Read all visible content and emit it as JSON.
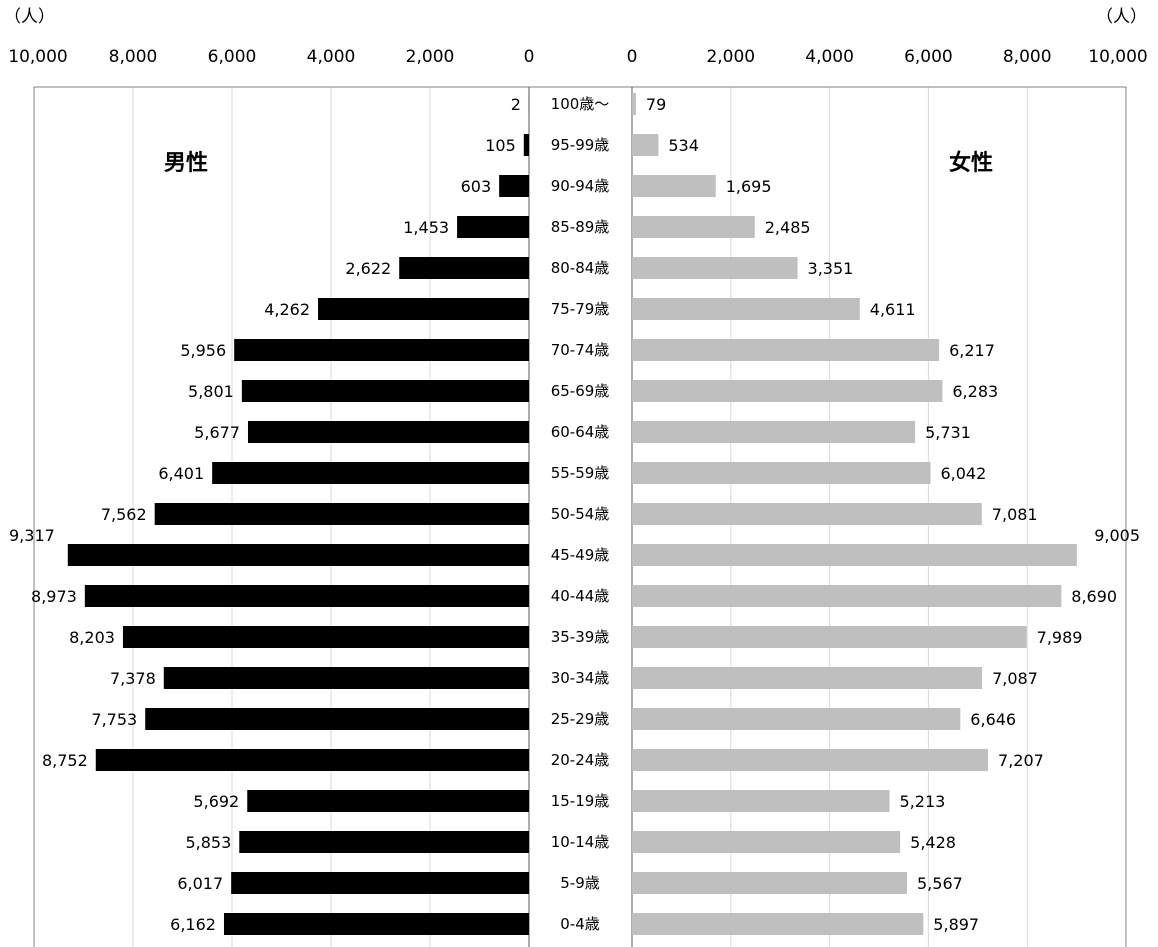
{
  "chart_data": {
    "type": "bar",
    "orientation": "horizontal-population-pyramid",
    "unit_label": "（人）",
    "left_panel_label": "男性",
    "right_panel_label": "女性",
    "xlim": [
      0,
      10000
    ],
    "x_ticks": [
      "10,000",
      "8,000",
      "6,000",
      "4,000",
      "2,000",
      "0"
    ],
    "x_ticks_right": [
      "0",
      "2,000",
      "4,000",
      "6,000",
      "8,000",
      "10,000"
    ],
    "grid": true,
    "categories": [
      "100歳～",
      "95-99歳",
      "90-94歳",
      "85-89歳",
      "80-84歳",
      "75-79歳",
      "70-74歳",
      "65-69歳",
      "60-64歳",
      "55-59歳",
      "50-54歳",
      "45-49歳",
      "40-44歳",
      "35-39歳",
      "30-34歳",
      "25-29歳",
      "20-24歳",
      "15-19歳",
      "10-14歳",
      "5-9歳",
      "0-4歳"
    ],
    "series": [
      {
        "name": "男性",
        "color": "#000000",
        "values": [
          2,
          105,
          603,
          1453,
          2622,
          4262,
          5956,
          5801,
          5677,
          6401,
          7562,
          9317,
          8973,
          8203,
          7378,
          7753,
          8752,
          5692,
          5853,
          6017,
          6162
        ],
        "labels": [
          "2",
          "105",
          "603",
          "1,453",
          "2,622",
          "4,262",
          "5,956",
          "5,801",
          "5,677",
          "6,401",
          "7,562",
          "9,317",
          "8,973",
          "8,203",
          "7,378",
          "7,753",
          "8,752",
          "5,692",
          "5,853",
          "6,017",
          "6,162"
        ]
      },
      {
        "name": "女性",
        "color": "#bfbfbf",
        "values": [
          79,
          534,
          1695,
          2485,
          3351,
          4611,
          6217,
          6283,
          5731,
          6042,
          7081,
          9005,
          8690,
          7989,
          7087,
          6646,
          7207,
          5213,
          5428,
          5567,
          5897
        ],
        "labels": [
          "79",
          "534",
          "1,695",
          "2,485",
          "3,351",
          "4,611",
          "6,217",
          "6,283",
          "5,731",
          "6,042",
          "7,081",
          "9,005",
          "8,690",
          "7,989",
          "7,087",
          "6,646",
          "7,207",
          "5,213",
          "5,428",
          "5,567",
          "5,897"
        ]
      }
    ],
    "grid_color": "#d9d9d9",
    "frame_color": "#808080"
  }
}
